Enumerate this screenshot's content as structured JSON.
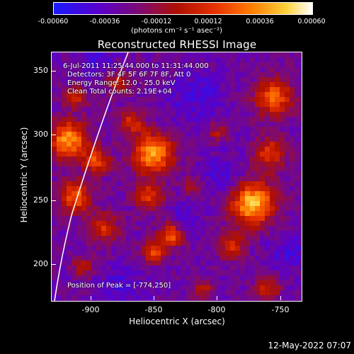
{
  "colorbar": {
    "ticks": [
      "-0.00060",
      "-0.00036",
      "-0.00012",
      "0.00012",
      "0.00036",
      "0.00060"
    ],
    "units": "(photons cm⁻² s⁻¹ asec⁻²)"
  },
  "title": "Reconstructed RHESSI Image",
  "info": {
    "time": "6-Jul-2011 11:25:44.000 to 11:31:44.000",
    "detectors": "Detectors: 3F 4F 5F 6F 7F 8F, Att 0",
    "energy": "Energy Range: 12.0 - 25.0 keV",
    "clean": "Clean    Total counts: 2.19E+04",
    "peak": "Position of Peak = [-774,250]"
  },
  "axes": {
    "xlabel": "Heliocentric X (arcsec)",
    "ylabel": "Heliocentric Y (arcsec)",
    "xticks": [
      "-900",
      "-850",
      "-800",
      "-750"
    ],
    "yticks": [
      "350",
      "300",
      "250",
      "200"
    ]
  },
  "footer": "12-May-2022 07:07"
}
